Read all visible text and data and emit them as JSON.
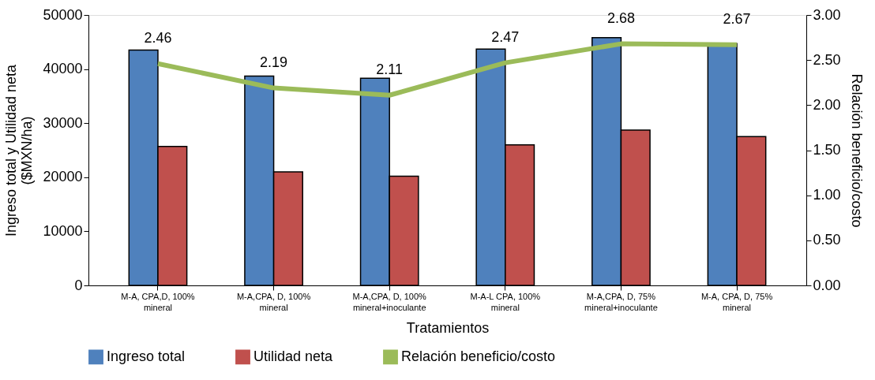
{
  "chart_data": {
    "type": "bar",
    "xlabel": "Tratamientos",
    "ylabel": "Ingreso total y Utilidad neta\n($MXN/ha)",
    "y2label": "Relación beneficio/costo",
    "categories": [
      "M-A, CPA,D, 100%\nmineral",
      "M-A,CPA, D, 100%\nmineral",
      "M-A,CPA, D, 100%\nmineral+inoculante",
      "M-A-L CPA, 100%\nmineral",
      "M-A,CPA, D, 75%\nmineral+inoculante",
      "M-A, CPA, D, 75%\nmineral"
    ],
    "series": [
      {
        "name": "Ingreso total",
        "color": "#4f81bd",
        "values": [
          43500,
          38700,
          38300,
          43700,
          45800,
          44700
        ]
      },
      {
        "name": "Utilidad neta",
        "color": "#c0504d",
        "values": [
          25700,
          21000,
          20200,
          26000,
          28700,
          27500
        ]
      },
      {
        "name": "Relación beneficio/costo",
        "type": "line",
        "axis": "y2",
        "color": "#9bbb59",
        "values": [
          2.46,
          2.19,
          2.11,
          2.47,
          2.68,
          2.67
        ],
        "data_labels": true
      }
    ],
    "ylim": [
      0,
      50000
    ],
    "yticks": [
      0,
      10000,
      20000,
      30000,
      40000,
      50000
    ],
    "y2lim": [
      0,
      3
    ],
    "y2ticks": [
      {
        "value": 0,
        "label": "0.00"
      },
      {
        "value": 0.5,
        "label": "0.50"
      },
      {
        "value": 1,
        "label": "1.00"
      },
      {
        "value": 1.5,
        "label": "1.50"
      },
      {
        "value": 2,
        "label": "2.00"
      },
      {
        "value": 2.5,
        "label": "2.50"
      },
      {
        "value": 3,
        "label": "3.00"
      }
    ],
    "grid": false,
    "legend": "bottom"
  }
}
